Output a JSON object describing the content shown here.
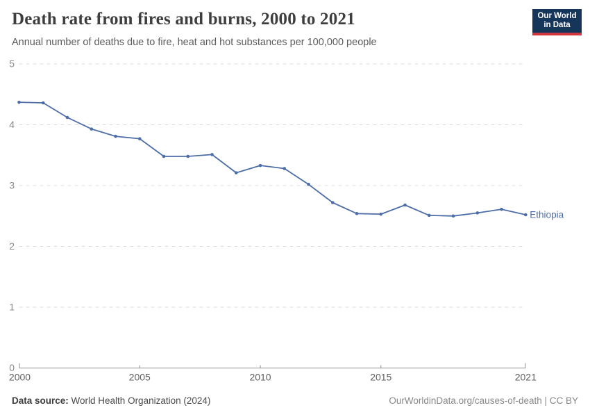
{
  "header": {
    "title": "Death rate from fires and burns, 2000 to 2021",
    "subtitle": "Annual number of deaths due to fire, heat and hot substances per 100,000 people",
    "logo": {
      "line1": "Our World",
      "line2": "in Data",
      "bg_color": "#16355b",
      "accent_color": "#d1353d"
    }
  },
  "chart_data": {
    "type": "line",
    "title": "Death rate from fires and burns, 2000 to 2021",
    "xlabel": "",
    "ylabel": "Annual number of deaths due to fire, heat and hot substances per 100,000 people",
    "x": [
      2000,
      2001,
      2002,
      2003,
      2004,
      2005,
      2006,
      2007,
      2008,
      2009,
      2010,
      2011,
      2012,
      2013,
      2014,
      2015,
      2016,
      2017,
      2018,
      2019,
      2020,
      2021
    ],
    "series": [
      {
        "name": "Ethiopia",
        "color": "#4d6da8",
        "values": [
          4.37,
          4.36,
          4.12,
          3.93,
          3.81,
          3.77,
          3.48,
          3.48,
          3.51,
          3.21,
          3.33,
          3.28,
          3.02,
          2.72,
          2.54,
          2.53,
          2.68,
          2.51,
          2.5,
          2.55,
          2.61,
          2.52
        ]
      }
    ],
    "ylim": [
      0,
      5
    ],
    "yticks": [
      0,
      1,
      2,
      3,
      4,
      5
    ],
    "xticks": [
      2000,
      2005,
      2010,
      2015,
      2021
    ],
    "grid": "horizontal-dashed",
    "legend_position": "end-of-line-label",
    "colors": {
      "gridline": "#dcdcdc",
      "axis": "#8f8f8f",
      "y_tick_label": "#8a8a8a",
      "x_tick_label": "#5f5f5f"
    }
  },
  "footer": {
    "source_label": "Data source:",
    "source_text": " World Health Organization (2024)",
    "origin_text": "OurWorldinData.org/causes-of-death | CC BY"
  }
}
